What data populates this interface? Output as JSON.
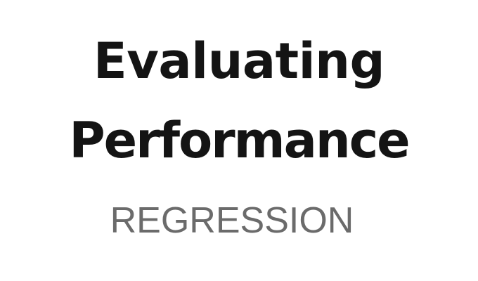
{
  "slide": {
    "title_line_1": "Evaluating",
    "title_line_2": "Performance",
    "subtitle": "REGRESSION"
  }
}
